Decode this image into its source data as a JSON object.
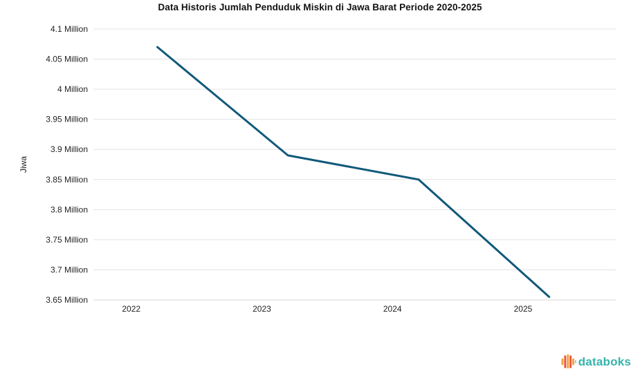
{
  "chart_data": {
    "type": "line",
    "title": "Data Historis Jumlah Penduduk Miskin di Jawa Barat Periode 2020-2025",
    "xlabel": "",
    "ylabel": "Jiwa",
    "unit": "Million",
    "x": [
      2022.2,
      2023.2,
      2024.2,
      2025.2
    ],
    "series": [
      {
        "name": "Jumlah Penduduk Miskin",
        "values": [
          4.07,
          3.89,
          3.85,
          3.655
        ]
      }
    ],
    "xlim": [
      2021.71,
      2025.71
    ],
    "ylim": [
      3.65,
      4.1
    ],
    "x_ticks": [
      {
        "value": 2022,
        "label": "2022"
      },
      {
        "value": 2023,
        "label": "2023"
      },
      {
        "value": 2024,
        "label": "2024"
      },
      {
        "value": 2025,
        "label": "2025"
      }
    ],
    "y_ticks": [
      {
        "value": 4.1,
        "label": "4.1 Million"
      },
      {
        "value": 4.05,
        "label": "4.05 Million"
      },
      {
        "value": 4.0,
        "label": "4 Million"
      },
      {
        "value": 3.95,
        "label": "3.95 Million"
      },
      {
        "value": 3.9,
        "label": "3.9 Million"
      },
      {
        "value": 3.85,
        "label": "3.85 Million"
      },
      {
        "value": 3.8,
        "label": "3.8 Million"
      },
      {
        "value": 3.75,
        "label": "3.75 Million"
      },
      {
        "value": 3.7,
        "label": "3.7 Million"
      },
      {
        "value": 3.65,
        "label": "3.65 Million"
      }
    ],
    "grid": true,
    "legend": false
  },
  "branding": {
    "logo_text": "databoks",
    "logo_icon": "databoks-equalizer-icon"
  },
  "colors": {
    "line": "#10597a",
    "grid": "#e3e3e3",
    "axis_line": "#d6d6d6",
    "axis_text": "#222222",
    "title_text": "#111111",
    "logo_teal": "#35b4ab",
    "logo_orange": "#f6a13b",
    "logo_red": "#ea5541",
    "logo_blue": "#8bd7ea"
  }
}
